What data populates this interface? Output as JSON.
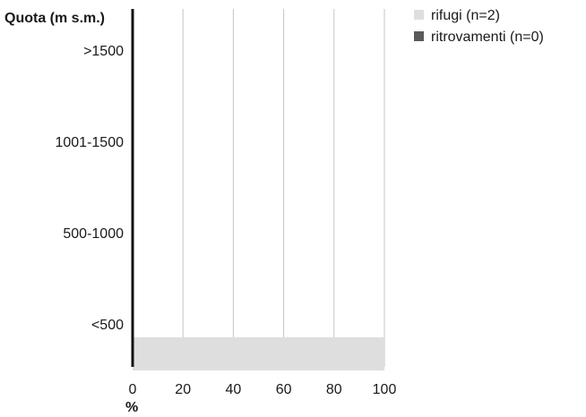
{
  "chart_data": {
    "type": "bar",
    "orientation": "horizontal",
    "stacking": "grouped",
    "ylabel": "Quota (m s.m.)",
    "xlabel": "%",
    "categories": [
      ">1500",
      "1001-1500",
      "500-1000",
      "<500"
    ],
    "series": [
      {
        "name": "rifugi (n=2)",
        "color": "#dedede",
        "values": [
          0,
          0,
          0,
          100
        ]
      },
      {
        "name": "ritrovamenti (n=0)",
        "color": "#5a5a5a",
        "values": [
          0,
          0,
          0,
          0
        ]
      }
    ],
    "xlim": [
      0,
      100
    ],
    "xticks": [
      0,
      20,
      40,
      60,
      80,
      100
    ],
    "grid": "vertical",
    "legend": "top-right"
  }
}
